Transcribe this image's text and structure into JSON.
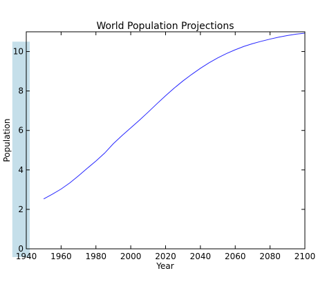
{
  "chart_data": {
    "type": "line",
    "title": "World Population Projections",
    "xlabel": "Year",
    "ylabel": "Population",
    "xlim": [
      1940,
      2100
    ],
    "ylim": [
      0,
      11
    ],
    "xticks": [
      1940,
      1960,
      1980,
      2000,
      2020,
      2040,
      2060,
      2080,
      2100
    ],
    "xtick_labels": [
      "1940",
      "1960",
      "1980",
      "2000",
      "2020",
      "2040",
      "2060",
      "2080",
      "2100"
    ],
    "yticks": [
      0,
      2,
      4,
      6,
      8,
      10
    ],
    "ytick_labels": [
      "0",
      "2",
      "4",
      "6",
      "8",
      "10"
    ],
    "grid": false,
    "highlight_band": {
      "x": [
        1932,
        1942
      ],
      "y": [
        0,
        10.5
      ],
      "color": "#c5dfea"
    },
    "series": [
      {
        "color": "#2626ff",
        "x": [
          1950,
          1955,
          1960,
          1965,
          1970,
          1975,
          1980,
          1985,
          1990,
          1995,
          2000,
          2005,
          2010,
          2015,
          2020,
          2025,
          2030,
          2035,
          2040,
          2045,
          2050,
          2055,
          2060,
          2065,
          2070,
          2075,
          2080,
          2085,
          2090,
          2095,
          2100
        ],
        "y": [
          2.53,
          2.77,
          3.03,
          3.34,
          3.7,
          4.08,
          4.45,
          4.85,
          5.33,
          5.74,
          6.13,
          6.52,
          6.93,
          7.35,
          7.76,
          8.15,
          8.51,
          8.84,
          9.15,
          9.43,
          9.68,
          9.9,
          10.09,
          10.26,
          10.4,
          10.52,
          10.63,
          10.73,
          10.81,
          10.88,
          10.93
        ]
      }
    ]
  }
}
